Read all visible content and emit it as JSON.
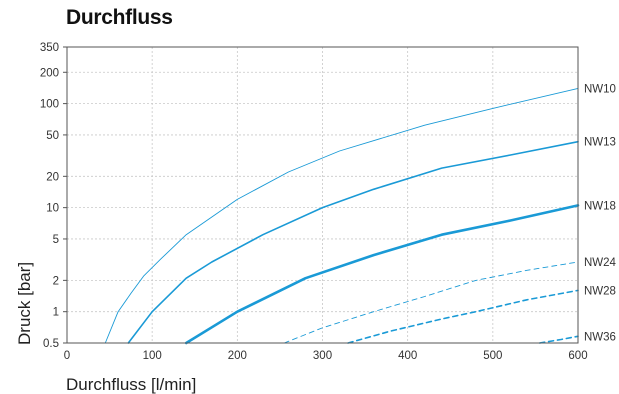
{
  "chart_data": {
    "type": "line",
    "title": "Durchfluss",
    "xlabel": "Durchfluss [l/min]",
    "ylabel": "Druck [bar]",
    "xlim": [
      0,
      600
    ],
    "ylim": [
      0.5,
      350
    ],
    "yscale": "log",
    "x_ticks": [
      0,
      100,
      200,
      300,
      400,
      500,
      600
    ],
    "y_ticks": [
      0.5,
      1,
      2,
      5,
      10,
      20,
      50,
      100,
      200,
      350
    ],
    "grid": true,
    "colors": {
      "series": "#1a9ad6",
      "grid": "#c8c8c8",
      "axis": "#555555"
    },
    "series": [
      {
        "name": "NW10",
        "style": "solid",
        "weight": "thin",
        "x": [
          45,
          60,
          75,
          90,
          110,
          140,
          200,
          260,
          320,
          420,
          500,
          600
        ],
        "y": [
          0.5,
          1,
          1.5,
          2.2,
          3.2,
          5.5,
          12,
          22,
          35,
          62,
          90,
          140
        ]
      },
      {
        "name": "NW13",
        "style": "solid",
        "weight": "medium",
        "x": [
          72,
          100,
          140,
          170,
          230,
          300,
          360,
          440,
          520,
          600
        ],
        "y": [
          0.5,
          1,
          2.1,
          3,
          5.5,
          10,
          15,
          24,
          32,
          43
        ]
      },
      {
        "name": "NW18",
        "style": "solid",
        "weight": "thick",
        "x": [
          140,
          200,
          280,
          360,
          440,
          520,
          600
        ],
        "y": [
          0.5,
          1,
          2.1,
          3.5,
          5.5,
          7.5,
          10.5
        ]
      },
      {
        "name": "NW24",
        "style": "dashed",
        "weight": "thin",
        "x": [
          255,
          300,
          360,
          420,
          480,
          540,
          600
        ],
        "y": [
          0.5,
          0.7,
          1,
          1.4,
          2,
          2.5,
          3
        ]
      },
      {
        "name": "NW28",
        "style": "dashed",
        "weight": "medium",
        "x": [
          330,
          380,
          440,
          480,
          540,
          600
        ],
        "y": [
          0.5,
          0.65,
          0.85,
          1,
          1.3,
          1.6
        ]
      },
      {
        "name": "NW36",
        "style": "dashed",
        "weight": "medium",
        "x": [
          555,
          580,
          600
        ],
        "y": [
          0.5,
          0.54,
          0.58
        ]
      }
    ],
    "legend": "inline-right"
  }
}
